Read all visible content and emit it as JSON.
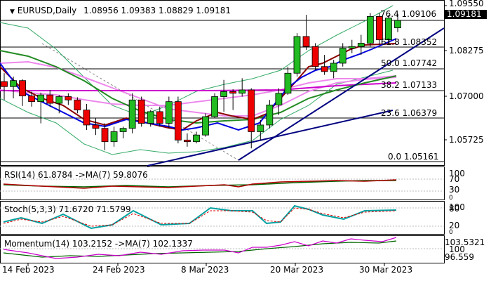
{
  "header": {
    "symbol_tf": "EURUSD,Daily",
    "ohlc": "1.08956 1.09383 1.08829 1.09181"
  },
  "price_axis": {
    "labels": [
      "1.09550",
      "1.08275",
      "1.07000",
      "1.05725"
    ],
    "current_price": "1.09181"
  },
  "fibonacci_levels": [
    {
      "text": "76.4 1.09106"
    },
    {
      "text": "61.8 1.08352"
    },
    {
      "text": "50.0 1.07742"
    },
    {
      "text": "38.2 1.07133"
    },
    {
      "text": "23.6 1.06379"
    },
    {
      "text": "0.0 1.05161"
    }
  ],
  "rsi": {
    "caption": "RSI(14) 61.8784 ->MA(7) 59.8076",
    "axis": [
      "100",
      "70",
      "30",
      "0"
    ]
  },
  "stoch": {
    "caption": "Stoch(5,3,3) 71.6720 71.5799",
    "axis": [
      "100",
      "80",
      "20",
      "0"
    ]
  },
  "momentum": {
    "caption": "Momentum(14) 103.2152 ->MA(7) 102.1337",
    "axis": [
      "103.5321",
      "100",
      "96.559"
    ]
  },
  "dates": [
    "14 Feb 2023",
    "24 Feb 2023",
    "8 Mar 2023",
    "20 Mar 2023",
    "30 Mar 2023"
  ],
  "colors": {
    "bull": "#22bb22",
    "bear": "#ee0000",
    "ma_fast": "#0000dd",
    "ma_slow": "#8b0000",
    "ma_green": "#228b22",
    "ma_magenta": "#cc00cc",
    "ma_pink": "#ee88ee",
    "trend": "#000080",
    "bands": "#33aa66"
  },
  "chart_data": {
    "type": "candlestick",
    "candles": [
      {
        "o": 1.0735,
        "h": 1.076,
        "l": 1.068,
        "c": 1.072
      },
      {
        "o": 1.072,
        "h": 1.075,
        "l": 1.0685,
        "c": 1.0738
      },
      {
        "o": 1.0738,
        "h": 1.0742,
        "l": 1.0662,
        "c": 1.0692
      },
      {
        "o": 1.0692,
        "h": 1.0705,
        "l": 1.066,
        "c": 1.0675
      },
      {
        "o": 1.0675,
        "h": 1.0702,
        "l": 1.061,
        "c": 1.0695
      },
      {
        "o": 1.0695,
        "h": 1.071,
        "l": 1.066,
        "c": 1.067
      },
      {
        "o": 1.067,
        "h": 1.0695,
        "l": 1.064,
        "c": 1.069
      },
      {
        "o": 1.069,
        "h": 1.07,
        "l": 1.0665,
        "c": 1.068
      },
      {
        "o": 1.068,
        "h": 1.0688,
        "l": 1.064,
        "c": 1.065
      },
      {
        "o": 1.065,
        "h": 1.0668,
        "l": 1.059,
        "c": 1.0605
      },
      {
        "o": 1.0605,
        "h": 1.0625,
        "l": 1.0575,
        "c": 1.0595
      },
      {
        "o": 1.0595,
        "h": 1.061,
        "l": 1.053,
        "c": 1.0555
      },
      {
        "o": 1.0555,
        "h": 1.06,
        "l": 1.054,
        "c": 1.0585
      },
      {
        "o": 1.0585,
        "h": 1.06,
        "l": 1.0565,
        "c": 1.0595
      },
      {
        "o": 1.0595,
        "h": 1.07,
        "l": 1.058,
        "c": 1.068
      },
      {
        "o": 1.068,
        "h": 1.069,
        "l": 1.06,
        "c": 1.061
      },
      {
        "o": 1.061,
        "h": 1.065,
        "l": 1.06,
        "c": 1.0645
      },
      {
        "o": 1.0645,
        "h": 1.066,
        "l": 1.06,
        "c": 1.061
      },
      {
        "o": 1.061,
        "h": 1.069,
        "l": 1.0595,
        "c": 1.0675
      },
      {
        "o": 1.0675,
        "h": 1.069,
        "l": 1.055,
        "c": 1.056
      },
      {
        "o": 1.056,
        "h": 1.058,
        "l": 1.054,
        "c": 1.0555
      },
      {
        "o": 1.0555,
        "h": 1.0585,
        "l": 1.055,
        "c": 1.0575
      },
      {
        "o": 1.0575,
        "h": 1.064,
        "l": 1.057,
        "c": 1.063
      },
      {
        "o": 1.063,
        "h": 1.07,
        "l": 1.0625,
        "c": 1.069
      },
      {
        "o": 1.069,
        "h": 1.074,
        "l": 1.0645,
        "c": 1.0705
      },
      {
        "o": 1.0705,
        "h": 1.0712,
        "l": 1.065,
        "c": 1.07
      },
      {
        "o": 1.07,
        "h": 1.0745,
        "l": 1.069,
        "c": 1.071
      },
      {
        "o": 1.071,
        "h": 1.0715,
        "l": 1.0535,
        "c": 1.0585
      },
      {
        "o": 1.0585,
        "h": 1.062,
        "l": 1.056,
        "c": 1.0605
      },
      {
        "o": 1.0605,
        "h": 1.068,
        "l": 1.0595,
        "c": 1.0665
      },
      {
        "o": 1.0665,
        "h": 1.0715,
        "l": 1.0635,
        "c": 1.07
      },
      {
        "o": 1.07,
        "h": 1.078,
        "l": 1.0695,
        "c": 1.076
      },
      {
        "o": 1.076,
        "h": 1.088,
        "l": 1.075,
        "c": 1.087
      },
      {
        "o": 1.087,
        "h": 1.0935,
        "l": 1.083,
        "c": 1.084
      },
      {
        "o": 1.084,
        "h": 1.085,
        "l": 1.077,
        "c": 1.078
      },
      {
        "o": 1.078,
        "h": 1.0815,
        "l": 1.0755,
        "c": 1.0765
      },
      {
        "o": 1.0765,
        "h": 1.08,
        "l": 1.0745,
        "c": 1.079
      },
      {
        "o": 1.079,
        "h": 1.085,
        "l": 1.078,
        "c": 1.0835
      },
      {
        "o": 1.0835,
        "h": 1.086,
        "l": 1.082,
        "c": 1.084
      },
      {
        "o": 1.084,
        "h": 1.0875,
        "l": 1.0815,
        "c": 1.085
      },
      {
        "o": 1.085,
        "h": 1.094,
        "l": 1.084,
        "c": 1.093
      },
      {
        "o": 1.093,
        "h": 1.094,
        "l": 1.0845,
        "c": 1.086
      },
      {
        "o": 1.086,
        "h": 1.0935,
        "l": 1.0845,
        "c": 1.0925
      },
      {
        "o": 1.0896,
        "h": 1.0938,
        "l": 1.0883,
        "c": 1.0918
      }
    ],
    "ylim": [
      1.0485,
      1.0975
    ]
  }
}
